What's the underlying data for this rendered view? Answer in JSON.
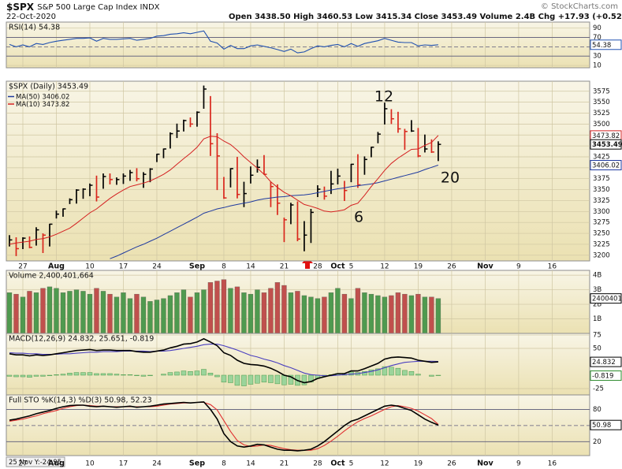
{
  "header": {
    "symbol": "$SPX",
    "name": "S&P 500 Large Cap Index INDX",
    "date": "22-Oct-2020",
    "quote": "Open 3438.50  High 3460.53  Low 3415.34  Close 3453.49  Volume 2.4B  Chg +17.93 (+0.52%)",
    "credit": "© StockCharts.com"
  },
  "footer": "25 Nov Y:-24.95",
  "chart_data": [
    {
      "type": "line",
      "title": "RSI(14) 54.38",
      "ylim": [
        5,
        103
      ],
      "yticks": [
        10,
        30,
        70,
        90
      ],
      "reference_lines": [
        70,
        30
      ],
      "center_line": 50,
      "series": [
        {
          "color": "#2050b0",
          "flag": true,
          "values": [
            55,
            50,
            54,
            50,
            57,
            55,
            59,
            62,
            64,
            66,
            68,
            68,
            69,
            62,
            68,
            66,
            66,
            67,
            68,
            64,
            66,
            68,
            73,
            74,
            77,
            78,
            80,
            78,
            81,
            84,
            62,
            58,
            45,
            53,
            46,
            46,
            52,
            54,
            51,
            48,
            44,
            40,
            45,
            37,
            39,
            46,
            52,
            50,
            53,
            55,
            50,
            57,
            51,
            57,
            60,
            63,
            68,
            64,
            60,
            59,
            59,
            52,
            54,
            53,
            54.38
          ]
        }
      ]
    },
    {
      "type": "ohlc",
      "title": "$SPX (Daily) 3453.49",
      "ylim": [
        3187,
        3598
      ],
      "yticks": [
        3200,
        3225,
        3250,
        3275,
        3300,
        3325,
        3350,
        3375,
        3400,
        3425,
        3450,
        3475,
        3500,
        3525,
        3550,
        3575
      ],
      "xlim": [
        -0.47,
        86.6
      ],
      "xticks": [
        {
          "value": 2,
          "label": "27"
        },
        {
          "value": 7,
          "label": "Aug"
        },
        {
          "value": 12,
          "label": "10"
        },
        {
          "value": 17,
          "label": "17"
        },
        {
          "value": 22,
          "label": "24"
        },
        {
          "value": 28,
          "label": "Sep"
        },
        {
          "value": 32,
          "label": "8"
        },
        {
          "value": 36,
          "label": "14"
        },
        {
          "value": 41,
          "label": "21"
        },
        {
          "value": 46,
          "label": "28"
        },
        {
          "value": 49,
          "label": "Oct"
        },
        {
          "value": 51,
          "label": "5"
        },
        {
          "value": 56,
          "label": "12"
        },
        {
          "value": 61,
          "label": "19"
        },
        {
          "value": 66,
          "label": "26"
        },
        {
          "value": 71,
          "label": "Nov"
        },
        {
          "value": 76,
          "label": "9"
        },
        {
          "value": 81,
          "label": "16"
        }
      ],
      "up_color": "#000000",
      "down_color": "#d9261c",
      "high": [
        3246,
        3241,
        3241,
        3243,
        3264,
        3250,
        3272,
        3302,
        3307,
        3330,
        3351,
        3353,
        3364,
        3382,
        3387,
        3387,
        3378,
        3387,
        3395,
        3399,
        3390,
        3399,
        3432,
        3444,
        3481,
        3501,
        3510,
        3515,
        3529,
        3588,
        3564,
        3479,
        3379,
        3399,
        3425,
        3368,
        3403,
        3419,
        3429,
        3368,
        3362,
        3286,
        3320,
        3323,
        3278,
        3306,
        3360,
        3357,
        3393,
        3398,
        3370,
        3409,
        3431,
        3426,
        3448,
        3482,
        3549,
        3534,
        3528,
        3489,
        3509,
        3491,
        3476,
        3465,
        3460.53
      ],
      "low": [
        3220,
        3198,
        3214,
        3216,
        3222,
        3205,
        3220,
        3284,
        3288,
        3317,
        3318,
        3329,
        3335,
        3323,
        3352,
        3362,
        3361,
        3363,
        3370,
        3369,
        3354,
        3367,
        3413,
        3422,
        3444,
        3468,
        3483,
        3493,
        3494,
        3535,
        3427,
        3349,
        3329,
        3355,
        3330,
        3310,
        3364,
        3389,
        3384,
        3310,
        3292,
        3230,
        3271,
        3232,
        3209,
        3228,
        3333,
        3327,
        3340,
        3362,
        3324,
        3367,
        3354,
        3384,
        3424,
        3456,
        3499,
        3500,
        3480,
        3441,
        3482,
        3424,
        3435,
        3434,
        3415.34
      ],
      "close": [
        3235,
        3215,
        3239,
        3218,
        3258,
        3246,
        3271,
        3294,
        3306,
        3327,
        3349,
        3351,
        3360,
        3333,
        3380,
        3373,
        3373,
        3381,
        3389,
        3375,
        3385,
        3397,
        3431,
        3443,
        3478,
        3484,
        3508,
        3500,
        3527,
        3580,
        3455,
        3427,
        3331,
        3398,
        3339,
        3341,
        3383,
        3401,
        3385,
        3357,
        3319,
        3281,
        3315,
        3237,
        3246,
        3298,
        3351,
        3335,
        3363,
        3381,
        3348,
        3408,
        3361,
        3419,
        3447,
        3477,
        3535,
        3512,
        3489,
        3483,
        3484,
        3427,
        3443,
        3436,
        3453.49
      ],
      "series": [
        {
          "name": "MA(50)",
          "color": "#1f3a9f",
          "flag": true,
          "values": [
            null,
            null,
            null,
            null,
            null,
            null,
            null,
            null,
            null,
            null,
            null,
            null,
            null,
            null,
            null,
            3192,
            3198,
            3205,
            3212,
            3219,
            3225,
            3232,
            3239,
            3247,
            3255,
            3263,
            3271,
            3279,
            3287,
            3296,
            3301,
            3306,
            3309,
            3313,
            3316,
            3319,
            3322,
            3326,
            3329,
            3331,
            3333,
            3334,
            3336,
            3337,
            3338,
            3340,
            3343,
            3346,
            3349,
            3352,
            3354,
            3357,
            3359,
            3361,
            3363,
            3366,
            3370,
            3374,
            3378,
            3382,
            3386,
            3390,
            3396,
            3401,
            3406.02
          ]
        },
        {
          "name": "MA(10)",
          "color": "#d42020",
          "flag": true,
          "values": [
            3225,
            3228,
            3230,
            3232,
            3236,
            3238,
            3242,
            3248,
            3255,
            3262,
            3273,
            3285,
            3297,
            3306,
            3318,
            3330,
            3340,
            3349,
            3357,
            3361,
            3365,
            3370,
            3377,
            3385,
            3395,
            3408,
            3421,
            3433,
            3447,
            3466,
            3472,
            3471,
            3461,
            3453,
            3440,
            3425,
            3412,
            3399,
            3385,
            3368,
            3355,
            3344,
            3336,
            3326,
            3316,
            3312,
            3307,
            3301,
            3299,
            3301,
            3304,
            3314,
            3319,
            3337,
            3357,
            3375,
            3394,
            3410,
            3422,
            3432,
            3442,
            3443,
            3451,
            3458,
            3473.82
          ]
        }
      ],
      "annotations": [
        "12",
        "6",
        "20"
      ]
    },
    {
      "type": "bar",
      "title": "Volume 2,400,401,664",
      "ylim": [
        0,
        4.33
      ],
      "yticks": [
        {
          "value": 1,
          "label": "1B"
        },
        {
          "value": 2,
          "label": "2B"
        },
        {
          "value": 3,
          "label": "3B"
        },
        {
          "value": 4,
          "label": "4B"
        }
      ],
      "up_color": "#4f9a4f",
      "down_color": "#c0504d",
      "flag_label": "2400401",
      "values": [
        2.8,
        2.7,
        2.5,
        2.9,
        2.8,
        3.1,
        3.2,
        3.1,
        2.8,
        2.9,
        3.0,
        2.9,
        2.7,
        3.1,
        2.9,
        2.7,
        2.5,
        2.8,
        2.4,
        2.7,
        2.5,
        2.2,
        2.3,
        2.4,
        2.6,
        2.8,
        3.0,
        2.5,
        2.8,
        3.0,
        3.5,
        3.6,
        3.7,
        3.1,
        3.2,
        2.8,
        2.7,
        3.0,
        2.8,
        3.1,
        3.5,
        3.3,
        2.8,
        2.9,
        2.6,
        2.5,
        2.4,
        2.5,
        2.8,
        3.1,
        2.7,
        2.4,
        3.1,
        2.8,
        2.7,
        2.6,
        2.5,
        2.6,
        2.8,
        2.7,
        2.6,
        2.7,
        2.5,
        2.5,
        2.400401664
      ]
    },
    {
      "type": "line",
      "title": "MACD(12,26,9) 24.832, 25.651, -0.819",
      "ylim": [
        -36.8,
        78
      ],
      "yticks": [
        -25,
        50,
        75
      ],
      "series": [
        {
          "style": "histogram",
          "color": "#9bd49b",
          "flag": true,
          "values": [
            -2,
            -3,
            -3,
            -4,
            -2,
            -2,
            -1,
            1,
            2,
            4,
            5,
            5,
            5,
            3,
            3,
            3,
            2,
            1,
            1,
            -1,
            -2,
            -1,
            0,
            2,
            5,
            6,
            8,
            7,
            8,
            11,
            4,
            -3,
            -13,
            -14,
            -19,
            -20,
            -17,
            -15,
            -13,
            -14,
            -16,
            -18,
            -17,
            -19,
            -18,
            -13,
            -6,
            -2,
            1,
            3,
            2,
            6,
            5,
            7,
            10,
            12,
            16,
            15,
            13,
            9,
            7,
            2,
            0,
            -2,
            -0.819
          ]
        },
        {
          "color": "#4a3fc0",
          "flag": false,
          "values": [
            42,
            41,
            41,
            40,
            40,
            39,
            39,
            39,
            40,
            40,
            41,
            42,
            43,
            43,
            44,
            44,
            44,
            45,
            45,
            45,
            45,
            44,
            45,
            45,
            46,
            48,
            50,
            52,
            54,
            57,
            58,
            58,
            55,
            51,
            47,
            42,
            37,
            34,
            30,
            27,
            23,
            18,
            14,
            9,
            4,
            1,
            0,
            -1,
            -1,
            0,
            1,
            2,
            3,
            5,
            7,
            10,
            14,
            18,
            21,
            24,
            25,
            26,
            26,
            26,
            25.651
          ]
        },
        {
          "color": "#000000",
          "flag": true,
          "values": [
            40,
            38,
            38,
            36,
            38,
            37,
            38,
            40,
            42,
            44,
            46,
            47,
            48,
            46,
            47,
            47,
            46,
            46,
            46,
            44,
            43,
            43,
            45,
            47,
            51,
            54,
            58,
            59,
            62,
            68,
            62,
            55,
            42,
            37,
            28,
            22,
            20,
            19,
            17,
            13,
            7,
            0,
            -3,
            -10,
            -14,
            -12,
            -6,
            -3,
            0,
            3,
            3,
            8,
            8,
            12,
            17,
            22,
            30,
            33,
            34,
            33,
            32,
            28,
            26,
            24,
            24.832
          ]
        }
      ]
    },
    {
      "type": "line",
      "title": "Full STO %K(14,3) %D(3) 50.98, 52.23",
      "ylim": [
        -5.9,
        107
      ],
      "yticks": [
        20,
        80
      ],
      "reference_lines": [
        80,
        20
      ],
      "center_line": 50,
      "series": [
        {
          "color": "#e03030",
          "flag": false,
          "values": [
            58,
            60,
            62,
            65,
            68,
            72,
            75,
            78,
            82,
            85,
            87,
            88,
            87,
            86,
            86,
            85,
            85,
            85,
            85,
            85,
            85,
            85,
            86,
            88,
            90,
            91,
            92,
            92,
            93,
            93,
            89,
            79,
            59,
            39,
            22,
            14,
            11,
            12,
            14,
            13,
            10,
            7,
            5,
            4,
            4,
            4,
            7,
            13,
            21,
            30,
            40,
            49,
            57,
            63,
            68,
            74,
            80,
            85,
            87,
            85,
            82,
            77,
            70,
            63,
            52.23
          ]
        },
        {
          "color": "#000000",
          "flag": true,
          "values": [
            60,
            62,
            65,
            68,
            72,
            75,
            78,
            82,
            85,
            87,
            88,
            88,
            86,
            85,
            86,
            85,
            84,
            85,
            86,
            84,
            85,
            86,
            88,
            90,
            91,
            92,
            93,
            92,
            93,
            94,
            80,
            62,
            35,
            20,
            12,
            10,
            12,
            15,
            14,
            10,
            6,
            4,
            4,
            3,
            4,
            6,
            12,
            20,
            30,
            40,
            50,
            58,
            62,
            68,
            74,
            80,
            86,
            88,
            86,
            82,
            78,
            70,
            62,
            56,
            50.98
          ]
        }
      ]
    }
  ]
}
